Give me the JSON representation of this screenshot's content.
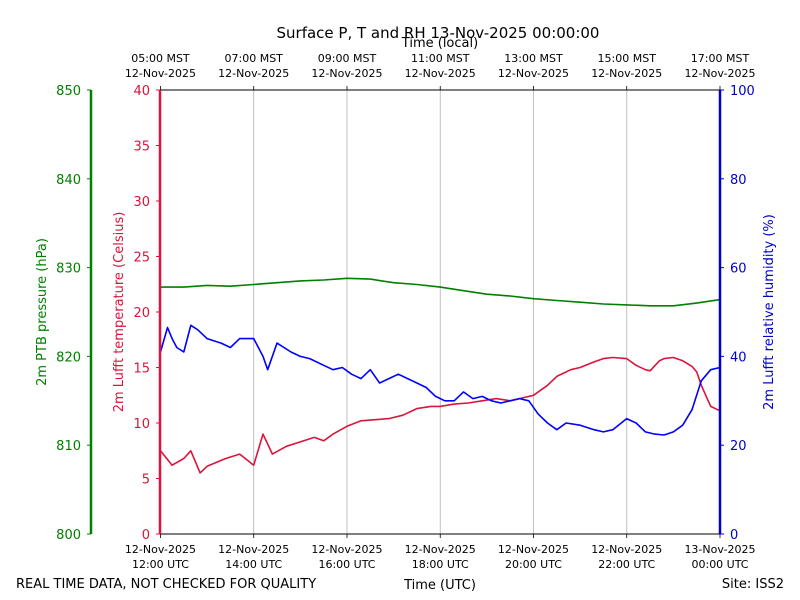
{
  "chart_data": {
    "type": "line",
    "title": "Surface P, T and RH 13-Nov-2025 00:00:00",
    "top_axis_label": "Time (local)",
    "bottom_axis_label": "Time (UTC)",
    "footer_left": "REAL TIME DATA, NOT CHECKED FOR QUALITY",
    "footer_right": "Site: ISS2",
    "x_range_hours_utc": [
      11.99,
      24.0
    ],
    "x_ticks_utc": [
      {
        "h": 12,
        "date": "12-Nov-2025",
        "time": "12:00 UTC"
      },
      {
        "h": 14,
        "date": "12-Nov-2025",
        "time": "14:00 UTC"
      },
      {
        "h": 16,
        "date": "12-Nov-2025",
        "time": "16:00 UTC"
      },
      {
        "h": 18,
        "date": "12-Nov-2025",
        "time": "18:00 UTC"
      },
      {
        "h": 20,
        "date": "12-Nov-2025",
        "time": "20:00 UTC"
      },
      {
        "h": 22,
        "date": "12-Nov-2025",
        "time": "22:00 UTC"
      },
      {
        "h": 24,
        "date": "13-Nov-2025",
        "time": "00:00 UTC"
      }
    ],
    "x_ticks_local": [
      {
        "h": 12,
        "time": "05:00 MST",
        "date": "12-Nov-2025"
      },
      {
        "h": 14,
        "time": "07:00 MST",
        "date": "12-Nov-2025"
      },
      {
        "h": 16,
        "time": "09:00 MST",
        "date": "12-Nov-2025"
      },
      {
        "h": 18,
        "time": "11:00 MST",
        "date": "12-Nov-2025"
      },
      {
        "h": 20,
        "time": "13:00 MST",
        "date": "12-Nov-2025"
      },
      {
        "h": 22,
        "time": "15:00 MST",
        "date": "12-Nov-2025"
      },
      {
        "h": 24,
        "time": "17:00 MST",
        "date": "12-Nov-2025"
      }
    ],
    "axes": {
      "pressure": {
        "label": "2m PTB pressure (hPa)",
        "range": [
          800,
          850
        ],
        "ticks": [
          800,
          810,
          820,
          830,
          840,
          850
        ],
        "color": "#008000"
      },
      "temperature": {
        "label": "2m Lufft temperature (Celsius)",
        "range": [
          0,
          40
        ],
        "ticks": [
          0,
          5,
          10,
          15,
          20,
          25,
          30,
          35,
          40
        ],
        "color": "#dc143c"
      },
      "humidity": {
        "label": "2m Lufft relative humidity (%)",
        "range": [
          0,
          100
        ],
        "ticks": [
          0,
          20,
          40,
          60,
          80,
          100
        ],
        "color": "#0000cd"
      }
    },
    "series": [
      {
        "name": "2m PTB pressure (hPa)",
        "axis": "pressure",
        "color": "#008000",
        "x": [
          12.0,
          12.5,
          13.0,
          13.5,
          14.0,
          14.5,
          15.0,
          15.5,
          16.0,
          16.5,
          17.0,
          17.5,
          18.0,
          18.5,
          19.0,
          19.5,
          20.0,
          20.5,
          21.0,
          21.5,
          22.0,
          22.5,
          23.0,
          23.5,
          24.0
        ],
        "values": [
          827.8,
          827.8,
          828.0,
          827.9,
          828.1,
          828.3,
          828.5,
          828.6,
          828.8,
          828.7,
          828.3,
          828.1,
          827.8,
          827.4,
          827.0,
          826.8,
          826.5,
          826.3,
          826.1,
          825.9,
          825.8,
          825.7,
          825.7,
          826.0,
          826.4
        ]
      },
      {
        "name": "2m Lufft temperature (Celsius)",
        "axis": "temperature",
        "color": "#dc143c",
        "x": [
          12.0,
          12.25,
          12.5,
          12.65,
          12.85,
          13.0,
          13.4,
          13.7,
          14.0,
          14.2,
          14.4,
          14.7,
          15.0,
          15.3,
          15.5,
          15.7,
          16.0,
          16.3,
          16.6,
          16.9,
          17.2,
          17.5,
          17.8,
          18.0,
          18.3,
          18.6,
          18.9,
          19.2,
          19.5,
          19.8,
          20.0,
          20.3,
          20.5,
          20.8,
          21.0,
          21.3,
          21.5,
          21.7,
          22.0,
          22.2,
          22.4,
          22.5,
          22.7,
          22.8,
          23.0,
          23.2,
          23.4,
          23.5,
          23.6,
          23.8,
          24.0
        ],
        "values": [
          7.5,
          6.2,
          6.8,
          7.5,
          5.5,
          6.1,
          6.8,
          7.2,
          6.2,
          9.0,
          7.2,
          7.9,
          8.3,
          8.7,
          8.4,
          9.0,
          9.7,
          10.2,
          10.3,
          10.4,
          10.7,
          11.3,
          11.5,
          11.5,
          11.7,
          11.8,
          12.0,
          12.2,
          12.0,
          12.3,
          12.5,
          13.4,
          14.2,
          14.8,
          15.0,
          15.5,
          15.8,
          15.9,
          15.8,
          15.2,
          14.8,
          14.7,
          15.6,
          15.8,
          15.9,
          15.6,
          15.1,
          14.6,
          13.4,
          11.5,
          11.1
        ]
      },
      {
        "name": "2m Lufft relative humidity (%)",
        "axis": "humidity",
        "color": "#0000ff",
        "x": [
          12.0,
          12.15,
          12.25,
          12.35,
          12.5,
          12.65,
          12.8,
          12.9,
          13.0,
          13.3,
          13.5,
          13.7,
          14.0,
          14.2,
          14.3,
          14.5,
          14.8,
          15.0,
          15.2,
          15.5,
          15.7,
          15.9,
          16.1,
          16.3,
          16.5,
          16.7,
          16.9,
          17.1,
          17.3,
          17.5,
          17.7,
          17.9,
          18.1,
          18.3,
          18.5,
          18.7,
          18.9,
          19.1,
          19.3,
          19.5,
          19.7,
          19.9,
          20.1,
          20.3,
          20.5,
          20.7,
          21.0,
          21.3,
          21.5,
          21.7,
          22.0,
          22.2,
          22.4,
          22.6,
          22.8,
          23.0,
          23.2,
          23.4,
          23.6,
          23.8,
          24.0
        ],
        "values": [
          41.0,
          46.5,
          44.0,
          42.0,
          41.0,
          47.0,
          46.0,
          45.0,
          44.0,
          43.0,
          42.0,
          44.0,
          44.0,
          40.0,
          37.0,
          43.0,
          41.0,
          40.0,
          39.5,
          38.0,
          37.0,
          37.5,
          36.0,
          35.0,
          37.0,
          34.0,
          35.0,
          36.0,
          35.0,
          34.0,
          33.0,
          31.0,
          30.0,
          30.0,
          32.0,
          30.5,
          31.0,
          30.0,
          29.5,
          30.0,
          30.5,
          30.0,
          27.0,
          25.0,
          23.5,
          25.0,
          24.5,
          23.5,
          23.0,
          23.5,
          26.0,
          25.0,
          23.0,
          22.5,
          22.3,
          23.0,
          24.5,
          28.0,
          34.5,
          37.0,
          37.5
        ]
      }
    ]
  }
}
